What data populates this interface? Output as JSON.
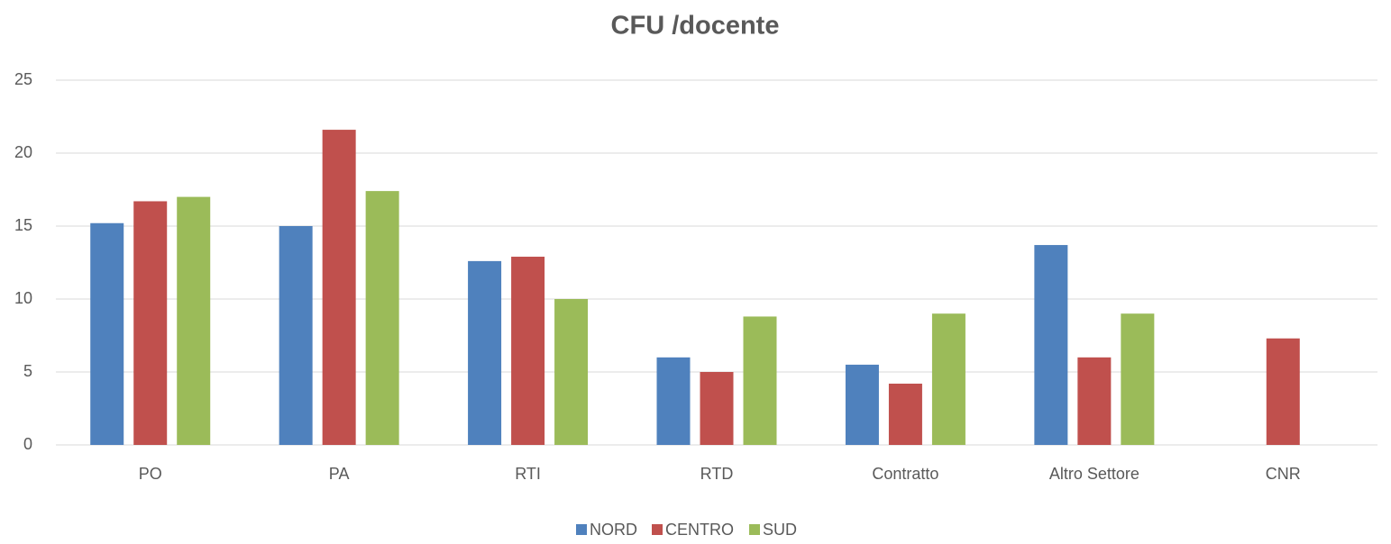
{
  "chart_data": {
    "type": "bar",
    "title": "CFU /docente",
    "categories": [
      "PO",
      "PA",
      "RTI",
      "RTD",
      "Contratto",
      "Altro Settore",
      "CNR"
    ],
    "series": [
      {
        "name": "NORD",
        "color": "#4f81bd",
        "values": [
          15.2,
          15.0,
          12.6,
          6.0,
          5.5,
          13.7,
          null
        ]
      },
      {
        "name": "CENTRO",
        "color": "#c0504d",
        "values": [
          16.7,
          21.6,
          12.9,
          5.0,
          4.2,
          6.0,
          7.3
        ]
      },
      {
        "name": "SUD",
        "color": "#9bbb59",
        "values": [
          17.0,
          17.4,
          10.0,
          8.8,
          9.0,
          9.0,
          null
        ]
      }
    ],
    "ylim": [
      0,
      25
    ],
    "yticks": [
      0,
      5,
      10,
      15,
      20,
      25
    ],
    "grid": true,
    "legend": "bottom"
  }
}
